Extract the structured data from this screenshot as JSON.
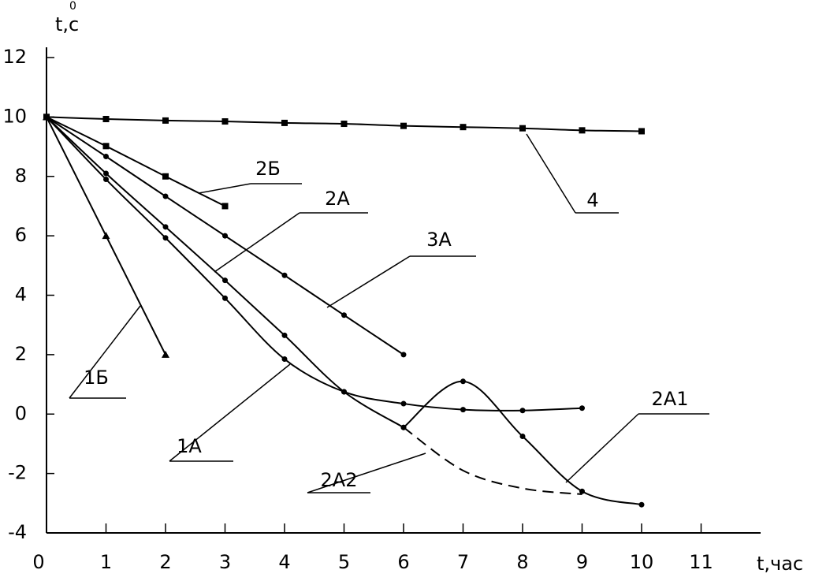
{
  "chart_data": {
    "type": "line",
    "y_label": "t,с",
    "y_label_sup": "0",
    "x_label": "t,час",
    "x": [
      0,
      1,
      2,
      3,
      4,
      5,
      6,
      7,
      8,
      9,
      10
    ],
    "xlim": [
      0,
      12
    ],
    "xticks": [
      0,
      1,
      2,
      3,
      4,
      5,
      6,
      7,
      8,
      9,
      10,
      11
    ],
    "ylim": [
      -4,
      12
    ],
    "yticks": [
      -4,
      -2,
      0,
      2,
      4,
      6,
      8,
      10,
      12
    ],
    "series": [
      {
        "name": "4",
        "color": "#000",
        "marker": "square",
        "values": [
          10,
          9.93,
          9.88,
          9.85,
          9.8,
          9.77,
          9.7,
          9.66,
          9.62,
          9.55,
          9.52
        ]
      },
      {
        "name": "2Б",
        "color": "#000",
        "marker": "square",
        "values": [
          10,
          9.02,
          8.0,
          7.0,
          null,
          null,
          null,
          null,
          null,
          null,
          null
        ]
      },
      {
        "name": "2А",
        "color": "#000",
        "marker": "circle",
        "values": [
          10,
          8.1,
          6.3,
          4.5,
          2.65,
          0.75,
          -0.45,
          null,
          null,
          null,
          null
        ]
      },
      {
        "name": "3А",
        "color": "#000",
        "marker": "circle",
        "values": [
          10,
          8.67,
          7.33,
          6.0,
          4.67,
          3.33,
          2.0,
          null,
          null,
          null,
          null
        ]
      },
      {
        "name": "1Б",
        "color": "#000",
        "marker": "triangle",
        "values": [
          10,
          6.0,
          2.0,
          null,
          null,
          null,
          null,
          null,
          null,
          null,
          null
        ]
      },
      {
        "name": "1А",
        "color": "#000",
        "marker": "circle",
        "values": [
          10,
          7.9,
          5.93,
          3.9,
          1.85,
          0.75,
          0.35,
          0.15,
          0.12,
          0.2,
          null
        ]
      },
      {
        "name": "2А2",
        "color": "#000",
        "marker": "none",
        "dashed": true,
        "values": [
          null,
          null,
          null,
          null,
          null,
          null,
          -0.45,
          -1.9,
          -2.5,
          -2.7,
          null
        ]
      },
      {
        "name": "2А1",
        "color": "#000",
        "marker": "circle",
        "values": [
          null,
          null,
          null,
          null,
          null,
          null,
          -0.45,
          1.1,
          -0.75,
          -2.6,
          -3.05
        ]
      }
    ]
  }
}
